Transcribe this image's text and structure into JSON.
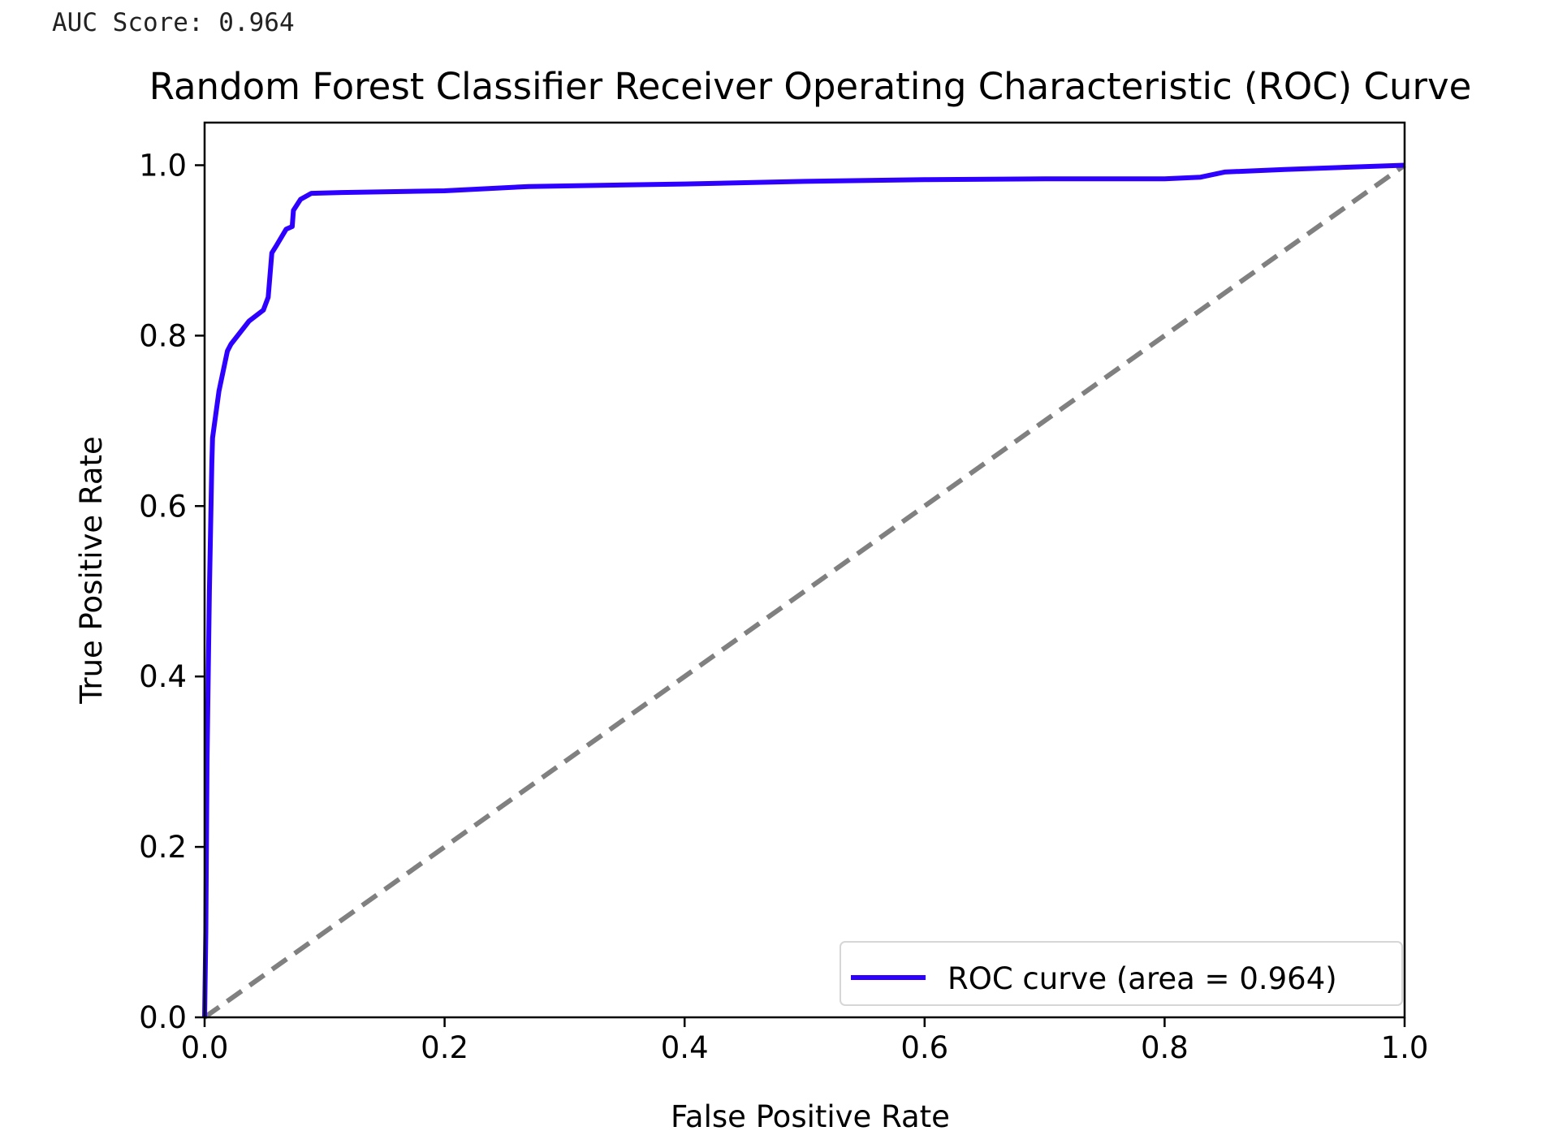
{
  "output": {
    "auc_text": "AUC Score: 0.964"
  },
  "chart_data": {
    "type": "line",
    "title": "Random Forest Classifier Receiver Operating Characteristic (ROC) Curve",
    "xlabel": "False Positive Rate",
    "ylabel": "True Positive Rate",
    "xlim": [
      0,
      1.0
    ],
    "ylim": [
      0,
      1.05
    ],
    "xticks": [
      "0.0",
      "0.2",
      "0.4",
      "0.6",
      "0.8",
      "1.0"
    ],
    "yticks": [
      "0.0",
      "0.2",
      "0.4",
      "0.6",
      "0.8",
      "1.0"
    ],
    "grid": false,
    "legend_position": "lower-right",
    "series": [
      {
        "name": "ROC curve (area = 0.964)",
        "color": "#2e00ff",
        "style": "solid",
        "x": [
          0,
          0.001,
          0.002,
          0.004,
          0.006,
          0.0066,
          0.012,
          0.019,
          0.022,
          0.037,
          0.049,
          0.053,
          0.056,
          0.06,
          0.068,
          0.073,
          0.074,
          0.08,
          0.089,
          0.114,
          0.2,
          0.27,
          0.4,
          0.5,
          0.6,
          0.7,
          0.8,
          0.83,
          0.85,
          0.9,
          1.0
        ],
        "y": [
          0,
          0.1,
          0.3,
          0.5,
          0.65,
          0.68,
          0.735,
          0.782,
          0.79,
          0.817,
          0.83,
          0.845,
          0.897,
          0.906,
          0.925,
          0.928,
          0.947,
          0.96,
          0.967,
          0.968,
          0.97,
          0.975,
          0.978,
          0.981,
          0.983,
          0.984,
          0.984,
          0.986,
          0.992,
          0.995,
          1.0
        ]
      },
      {
        "color": "#808080",
        "style": "dashed",
        "x": [
          0,
          1
        ],
        "y": [
          0,
          1
        ]
      }
    ]
  }
}
